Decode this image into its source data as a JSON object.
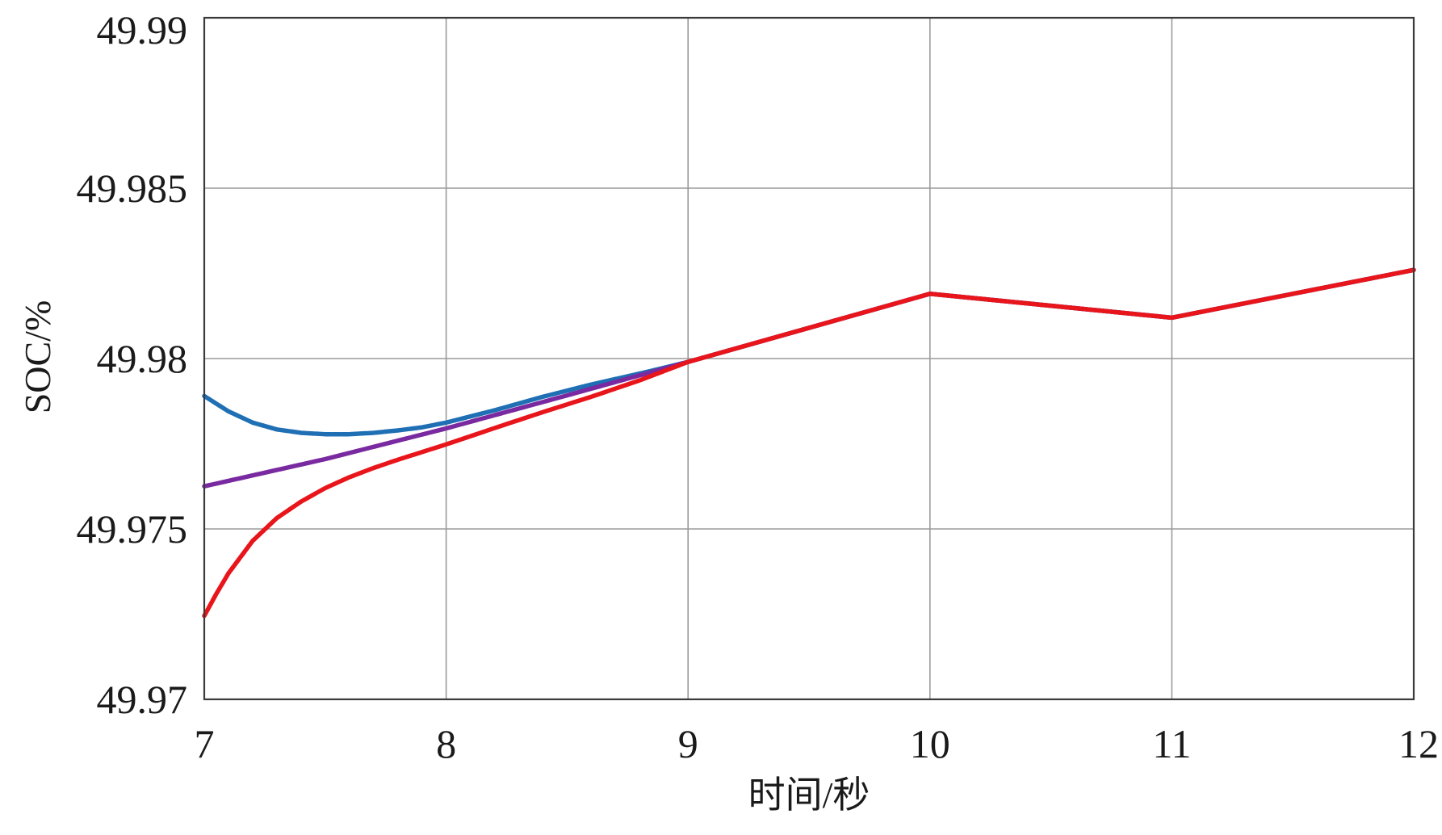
{
  "chart_data": {
    "type": "line",
    "title": "",
    "xlabel": "时间/秒",
    "ylabel": "SOC/%",
    "xlim": [
      7,
      12
    ],
    "ylim": [
      49.97,
      49.99
    ],
    "x_ticks": [
      7,
      8,
      9,
      10,
      11,
      12
    ],
    "x_tick_labels": [
      "7",
      "8",
      "9",
      "10",
      "11",
      "12"
    ],
    "y_ticks": [
      49.97,
      49.975,
      49.98,
      49.985,
      49.99
    ],
    "y_tick_labels": [
      "49.97",
      "49.975",
      "49.98",
      "49.985",
      "49.99"
    ],
    "grid": true,
    "legend": "none",
    "series": [
      {
        "color": "#1f6fb4",
        "x": [
          7.0,
          7.1,
          7.2,
          7.3,
          7.4,
          7.5,
          7.6,
          7.7,
          7.8,
          7.9,
          8.0,
          8.2,
          8.4,
          8.6,
          8.8,
          9.0,
          10.0,
          11.0,
          12.0
        ],
        "y": [
          49.9789,
          49.97845,
          49.97812,
          49.97792,
          49.97782,
          49.97778,
          49.97778,
          49.97782,
          49.97789,
          49.97798,
          49.97812,
          49.97848,
          49.97888,
          49.97924,
          49.97956,
          49.9799,
          49.9819,
          49.9812,
          49.9826
        ]
      },
      {
        "color": "#7a2aa0",
        "x": [
          7.0,
          7.5,
          8.0,
          8.5,
          9.0,
          10.0,
          11.0,
          12.0
        ],
        "y": [
          49.97625,
          49.97705,
          49.97795,
          49.97892,
          49.9799,
          49.9819,
          49.9812,
          49.9826
        ]
      },
      {
        "color": "#e8151b",
        "x": [
          7.0,
          7.05,
          7.1,
          7.2,
          7.3,
          7.4,
          7.5,
          7.6,
          7.7,
          7.8,
          8.0,
          8.2,
          8.4,
          8.6,
          8.8,
          9.0,
          10.0,
          11.0,
          12.0
        ],
        "y": [
          49.97245,
          49.9731,
          49.9737,
          49.97465,
          49.97532,
          49.9758,
          49.9762,
          49.97652,
          49.97679,
          49.97703,
          49.97748,
          49.97796,
          49.97843,
          49.97888,
          49.97936,
          49.9799,
          49.9819,
          49.9812,
          49.9826
        ]
      }
    ]
  }
}
